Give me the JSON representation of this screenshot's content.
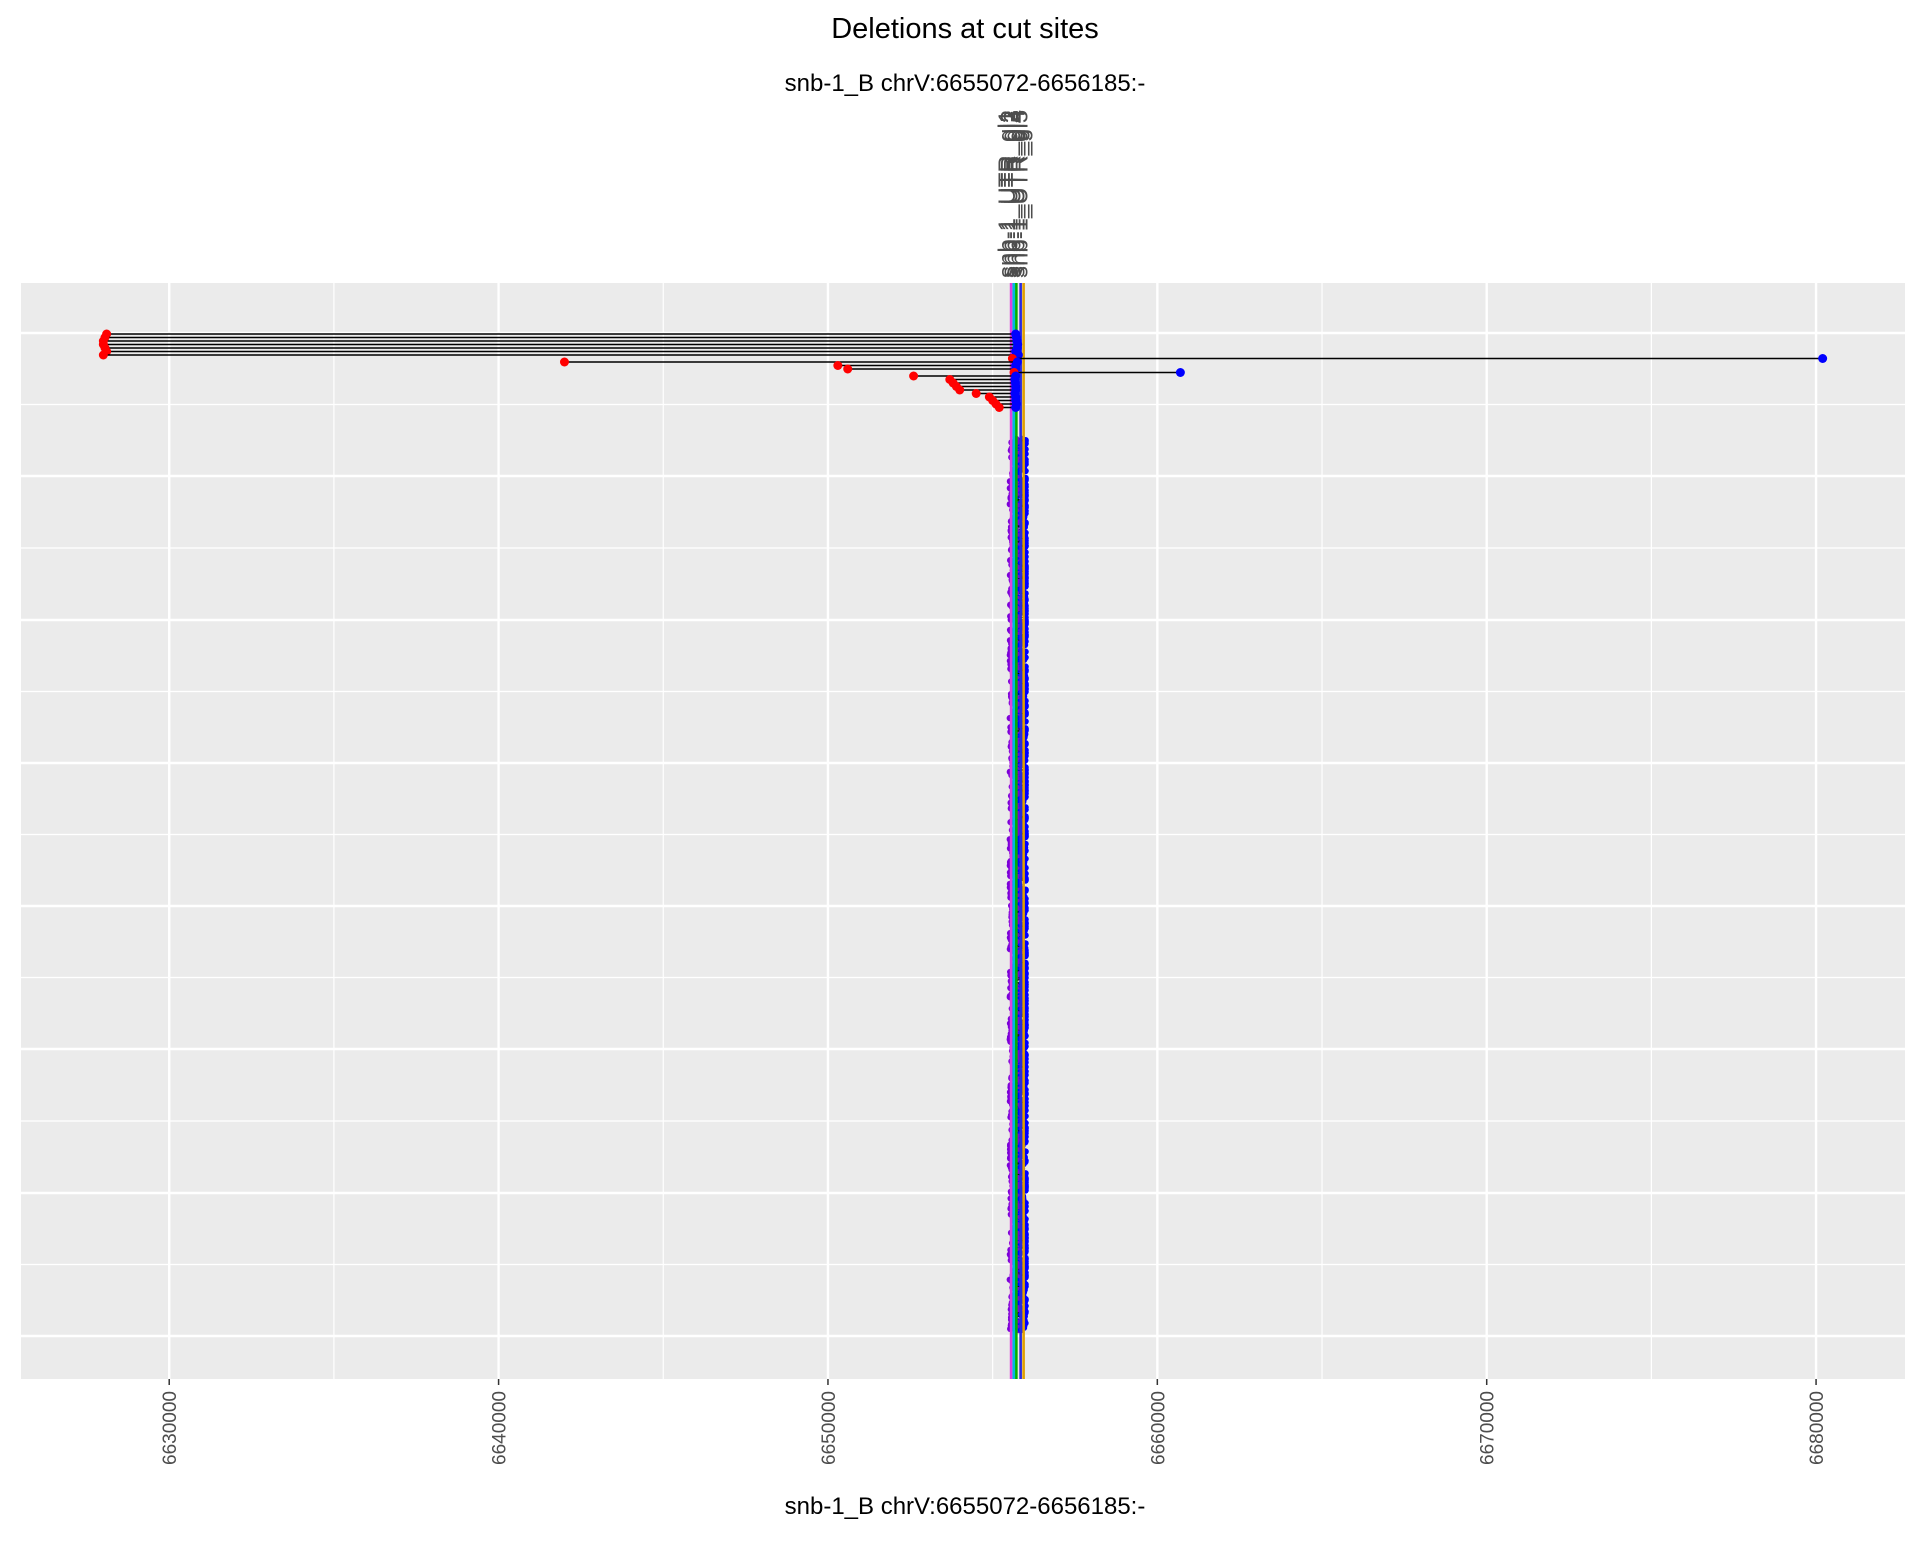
{
  "chart_data": {
    "type": "scatter",
    "title": "Deletions at cut sites",
    "subtitle": "snb-1_B chrV:6655072-6656185:-",
    "xlabel": "snb-1_B chrV:6655072-6656185:-",
    "ylabel": "",
    "xlim": [
      6625500,
      6682700
    ],
    "x_ticks": [
      6630000,
      6640000,
      6650000,
      6660000,
      6670000,
      6680000
    ],
    "x_tick_labels": [
      "6630000",
      "6640000",
      "6650000",
      "6660000",
      "6670000",
      "6680000"
    ],
    "grid": true,
    "legend": "none",
    "cut_site_labels": [
      "snb-1_UTR_gl1",
      "snb-1_UTR_gl2",
      "snb-1_UTR_gl3",
      "snb-1_UTR_gl4",
      "snb-1_UTR_gl5"
    ],
    "cut_sites": [
      {
        "x": 6655560,
        "color": "#e040e0"
      },
      {
        "x": 6655640,
        "color": "#00b8e0"
      },
      {
        "x": 6655720,
        "color": "#00b000"
      },
      {
        "x": 6655850,
        "color": "#2a2ae0"
      },
      {
        "x": 6655940,
        "color": "#e0a000"
      }
    ],
    "deletions_highlighted": [
      {
        "start": 6628100,
        "end": 6655700
      },
      {
        "start": 6628050,
        "end": 6655720
      },
      {
        "start": 6628000,
        "end": 6655740
      },
      {
        "start": 6628000,
        "end": 6655760
      },
      {
        "start": 6628050,
        "end": 6655750
      },
      {
        "start": 6628100,
        "end": 6655700
      },
      {
        "start": 6628000,
        "end": 6655780
      },
      {
        "start": 6655600,
        "end": 6680200
      },
      {
        "start": 6642000,
        "end": 6655750
      },
      {
        "start": 6650300,
        "end": 6655700
      },
      {
        "start": 6650600,
        "end": 6655700
      },
      {
        "start": 6655650,
        "end": 6660700
      },
      {
        "start": 6652600,
        "end": 6655700
      },
      {
        "start": 6653700,
        "end": 6655680
      },
      {
        "start": 6653800,
        "end": 6655690
      },
      {
        "start": 6653900,
        "end": 6655700
      },
      {
        "start": 6654000,
        "end": 6655700
      },
      {
        "start": 6654500,
        "end": 6655680
      },
      {
        "start": 6654900,
        "end": 6655700
      },
      {
        "start": 6655000,
        "end": 6655700
      },
      {
        "start": 6655100,
        "end": 6655720
      },
      {
        "start": 6655200,
        "end": 6655700
      }
    ],
    "small_deletion_count": 780,
    "small_deletion_range": [
      6655520,
      6656000
    ],
    "colors": {
      "panel": "#ebebeb",
      "grid": "#ffffff",
      "start_point": "#ff0000",
      "end_point": "#0000ff",
      "overlap_point": "#7b00d9",
      "segment": "#000000"
    }
  }
}
